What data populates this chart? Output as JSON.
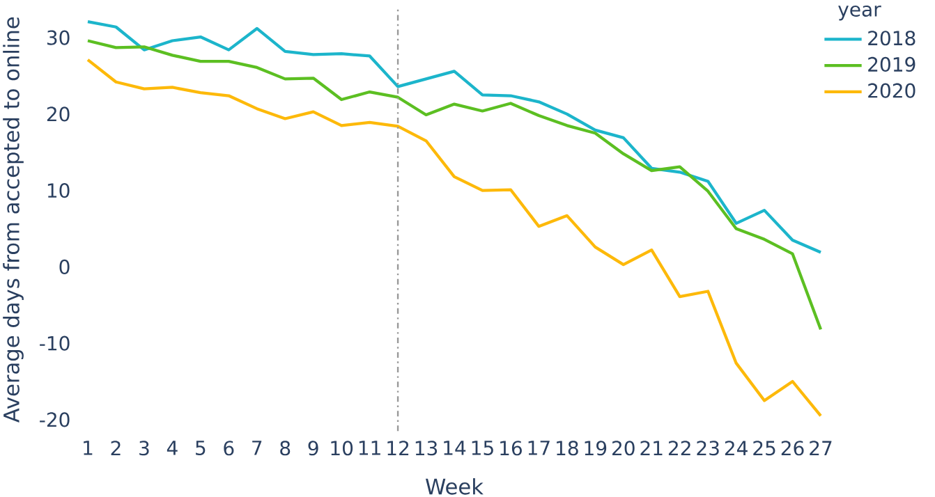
{
  "chart_data": {
    "type": "line",
    "xlabel": "Week",
    "ylabel": "Average days from accepted to online",
    "legend_title": "year",
    "legend": "top right",
    "grid": false,
    "marker": "none",
    "line_style": "solid",
    "x": [
      1,
      2,
      3,
      4,
      5,
      6,
      7,
      8,
      9,
      10,
      11,
      12,
      13,
      14,
      15,
      16,
      17,
      18,
      19,
      20,
      21,
      22,
      23,
      24,
      25,
      26,
      27
    ],
    "xlim": [
      1,
      27
    ],
    "xticks": [
      1,
      2,
      3,
      4,
      5,
      6,
      7,
      8,
      9,
      10,
      11,
      12,
      13,
      14,
      15,
      16,
      17,
      18,
      19,
      20,
      21,
      22,
      23,
      24,
      25,
      26,
      27
    ],
    "ylim": [
      -21.5,
      33.9
    ],
    "yticks": [
      -20,
      -10,
      0,
      10,
      20,
      30
    ],
    "series": [
      {
        "name": "2018",
        "color": "#1cb5cb",
        "values": [
          32.1,
          31.4,
          28.4,
          29.6,
          30.1,
          28.4,
          31.2,
          28.2,
          27.8,
          27.9,
          27.6,
          23.6,
          24.6,
          25.6,
          22.5,
          22.4,
          21.6,
          20.0,
          17.9,
          16.9,
          12.9,
          12.4,
          11.2,
          5.7,
          7.4,
          3.5,
          1.9
        ]
      },
      {
        "name": "2019",
        "color": "#5cbf22",
        "values": [
          29.6,
          28.7,
          28.8,
          27.7,
          26.9,
          26.9,
          26.1,
          24.6,
          24.7,
          21.9,
          22.9,
          22.2,
          19.9,
          21.3,
          20.4,
          21.4,
          19.8,
          18.5,
          17.5,
          14.8,
          12.6,
          13.1,
          9.9,
          5.0,
          3.6,
          1.7,
          -8.2
        ]
      },
      {
        "name": "2020",
        "color": "#fdb90a",
        "values": [
          27.1,
          24.2,
          23.3,
          23.5,
          22.8,
          22.4,
          20.7,
          19.4,
          20.3,
          18.5,
          18.9,
          18.4,
          16.5,
          11.8,
          10.0,
          10.1,
          5.3,
          6.7,
          2.6,
          0.3,
          2.2,
          -3.9,
          -3.2,
          -12.6,
          -17.5,
          -15.0,
          -19.5
        ]
      }
    ],
    "ref_lines": [
      {
        "axis": "x",
        "value": 12,
        "color": "#999999",
        "line_style": "dashed"
      }
    ]
  }
}
